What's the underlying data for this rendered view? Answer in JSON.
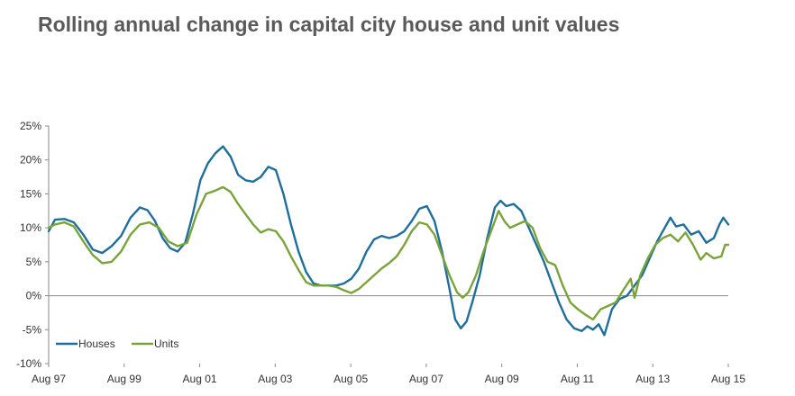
{
  "chart_data": {
    "type": "line",
    "title": "Rolling annual change in capital city house and unit values",
    "xlabel": "",
    "ylabel": "",
    "ylim": [
      -10,
      25
    ],
    "y_ticks": [
      "25%",
      "20%",
      "15%",
      "10%",
      "5%",
      "0%",
      "-5%",
      "-10%"
    ],
    "x_ticks": [
      "Aug 97",
      "Aug 99",
      "Aug 01",
      "Aug 03",
      "Aug 05",
      "Aug 07",
      "Aug 09",
      "Aug 11",
      "Aug 13",
      "Aug 15"
    ],
    "x_range": [
      1997.583,
      2015.583
    ],
    "grid": false,
    "legend": "bottom-left",
    "series": [
      {
        "name": "Houses",
        "color": "#1f6e9c",
        "points": [
          [
            1997.583,
            9.5
          ],
          [
            1997.75,
            11.2
          ],
          [
            1998.0,
            11.3
          ],
          [
            1998.25,
            10.8
          ],
          [
            1998.5,
            9.0
          ],
          [
            1998.75,
            6.8
          ],
          [
            1999.0,
            6.3
          ],
          [
            1999.25,
            7.3
          ],
          [
            1999.5,
            8.8
          ],
          [
            1999.75,
            11.5
          ],
          [
            2000.0,
            13.0
          ],
          [
            2000.2,
            12.6
          ],
          [
            2000.4,
            11.0
          ],
          [
            2000.6,
            8.5
          ],
          [
            2000.8,
            7.0
          ],
          [
            2001.0,
            6.5
          ],
          [
            2001.2,
            7.8
          ],
          [
            2001.4,
            12.0
          ],
          [
            2001.6,
            17.0
          ],
          [
            2001.8,
            19.5
          ],
          [
            2002.0,
            21.0
          ],
          [
            2002.2,
            22.0
          ],
          [
            2002.4,
            20.5
          ],
          [
            2002.6,
            17.8
          ],
          [
            2002.8,
            17.0
          ],
          [
            2003.0,
            16.8
          ],
          [
            2003.2,
            17.5
          ],
          [
            2003.4,
            19.0
          ],
          [
            2003.6,
            18.5
          ],
          [
            2003.8,
            15.0
          ],
          [
            2004.0,
            10.5
          ],
          [
            2004.2,
            6.5
          ],
          [
            2004.4,
            3.5
          ],
          [
            2004.6,
            1.8
          ],
          [
            2004.8,
            1.5
          ],
          [
            2005.0,
            1.5
          ],
          [
            2005.2,
            1.5
          ],
          [
            2005.4,
            1.8
          ],
          [
            2005.6,
            2.5
          ],
          [
            2005.8,
            4.0
          ],
          [
            2006.0,
            6.5
          ],
          [
            2006.2,
            8.3
          ],
          [
            2006.4,
            8.8
          ],
          [
            2006.6,
            8.5
          ],
          [
            2006.8,
            8.8
          ],
          [
            2007.0,
            9.5
          ],
          [
            2007.2,
            11.0
          ],
          [
            2007.4,
            12.8
          ],
          [
            2007.6,
            13.2
          ],
          [
            2007.8,
            11.0
          ],
          [
            2008.0,
            6.5
          ],
          [
            2008.2,
            1.0
          ],
          [
            2008.35,
            -3.5
          ],
          [
            2008.5,
            -4.8
          ],
          [
            2008.65,
            -3.8
          ],
          [
            2008.8,
            -1.0
          ],
          [
            2009.0,
            3.0
          ],
          [
            2009.2,
            8.5
          ],
          [
            2009.4,
            13.0
          ],
          [
            2009.55,
            14.0
          ],
          [
            2009.7,
            13.2
          ],
          [
            2009.9,
            13.5
          ],
          [
            2010.1,
            12.5
          ],
          [
            2010.3,
            10.0
          ],
          [
            2010.5,
            7.5
          ],
          [
            2010.7,
            5.0
          ],
          [
            2010.9,
            2.0
          ],
          [
            2011.1,
            -1.0
          ],
          [
            2011.3,
            -3.5
          ],
          [
            2011.5,
            -4.8
          ],
          [
            2011.7,
            -5.2
          ],
          [
            2011.85,
            -4.5
          ],
          [
            2012.0,
            -5.0
          ],
          [
            2012.15,
            -4.2
          ],
          [
            2012.3,
            -5.8
          ],
          [
            2012.5,
            -2.0
          ],
          [
            2012.7,
            -0.5
          ],
          [
            2012.9,
            0.0
          ],
          [
            2013.1,
            1.5
          ],
          [
            2013.3,
            3.0
          ],
          [
            2013.5,
            5.5
          ],
          [
            2013.7,
            8.0
          ],
          [
            2013.9,
            10.0
          ],
          [
            2014.05,
            11.5
          ],
          [
            2014.2,
            10.2
          ],
          [
            2014.4,
            10.5
          ],
          [
            2014.6,
            9.0
          ],
          [
            2014.8,
            9.5
          ],
          [
            2015.0,
            7.8
          ],
          [
            2015.2,
            8.5
          ],
          [
            2015.35,
            10.5
          ],
          [
            2015.45,
            11.5
          ],
          [
            2015.583,
            10.5
          ]
        ]
      },
      {
        "name": "Units",
        "color": "#7aa43b",
        "points": [
          [
            1997.583,
            10.0
          ],
          [
            1997.75,
            10.5
          ],
          [
            1998.0,
            10.8
          ],
          [
            1998.25,
            10.2
          ],
          [
            1998.5,
            8.0
          ],
          [
            1998.75,
            6.0
          ],
          [
            1999.0,
            4.8
          ],
          [
            1999.25,
            5.0
          ],
          [
            1999.5,
            6.5
          ],
          [
            1999.75,
            9.0
          ],
          [
            2000.0,
            10.5
          ],
          [
            2000.25,
            10.8
          ],
          [
            2000.5,
            10.0
          ],
          [
            2000.75,
            8.0
          ],
          [
            2001.0,
            7.3
          ],
          [
            2001.25,
            7.8
          ],
          [
            2001.5,
            12.0
          ],
          [
            2001.75,
            15.0
          ],
          [
            2002.0,
            15.5
          ],
          [
            2002.2,
            16.0
          ],
          [
            2002.4,
            15.3
          ],
          [
            2002.6,
            13.5
          ],
          [
            2002.8,
            12.0
          ],
          [
            2003.0,
            10.5
          ],
          [
            2003.2,
            9.3
          ],
          [
            2003.4,
            9.8
          ],
          [
            2003.6,
            9.5
          ],
          [
            2003.8,
            8.0
          ],
          [
            2004.0,
            5.8
          ],
          [
            2004.2,
            3.8
          ],
          [
            2004.4,
            2.0
          ],
          [
            2004.6,
            1.5
          ],
          [
            2004.8,
            1.5
          ],
          [
            2005.0,
            1.5
          ],
          [
            2005.2,
            1.3
          ],
          [
            2005.4,
            0.8
          ],
          [
            2005.6,
            0.4
          ],
          [
            2005.8,
            1.0
          ],
          [
            2006.0,
            2.0
          ],
          [
            2006.2,
            3.0
          ],
          [
            2006.4,
            4.0
          ],
          [
            2006.6,
            4.8
          ],
          [
            2006.8,
            5.8
          ],
          [
            2007.0,
            7.5
          ],
          [
            2007.2,
            9.5
          ],
          [
            2007.4,
            10.8
          ],
          [
            2007.6,
            10.5
          ],
          [
            2007.8,
            9.0
          ],
          [
            2008.0,
            6.0
          ],
          [
            2008.2,
            3.0
          ],
          [
            2008.4,
            0.5
          ],
          [
            2008.55,
            -0.3
          ],
          [
            2008.7,
            0.5
          ],
          [
            2008.9,
            3.0
          ],
          [
            2009.1,
            6.5
          ],
          [
            2009.3,
            9.5
          ],
          [
            2009.5,
            12.5
          ],
          [
            2009.65,
            11.0
          ],
          [
            2009.8,
            10.0
          ],
          [
            2010.0,
            10.5
          ],
          [
            2010.2,
            11.0
          ],
          [
            2010.4,
            10.0
          ],
          [
            2010.6,
            7.0
          ],
          [
            2010.8,
            5.0
          ],
          [
            2011.0,
            4.5
          ],
          [
            2011.2,
            1.5
          ],
          [
            2011.4,
            -1.0
          ],
          [
            2011.6,
            -2.0
          ],
          [
            2011.8,
            -2.8
          ],
          [
            2012.0,
            -3.5
          ],
          [
            2012.2,
            -2.0
          ],
          [
            2012.4,
            -1.5
          ],
          [
            2012.6,
            -1.0
          ],
          [
            2012.8,
            0.8
          ],
          [
            2013.0,
            2.5
          ],
          [
            2013.1,
            -0.3
          ],
          [
            2013.25,
            3.0
          ],
          [
            2013.45,
            5.5
          ],
          [
            2013.65,
            7.5
          ],
          [
            2013.85,
            8.5
          ],
          [
            2014.05,
            9.0
          ],
          [
            2014.25,
            8.0
          ],
          [
            2014.45,
            9.3
          ],
          [
            2014.65,
            7.5
          ],
          [
            2014.85,
            5.3
          ],
          [
            2015.0,
            6.3
          ],
          [
            2015.2,
            5.5
          ],
          [
            2015.4,
            5.8
          ],
          [
            2015.5,
            7.5
          ],
          [
            2015.583,
            7.5
          ]
        ]
      }
    ]
  }
}
